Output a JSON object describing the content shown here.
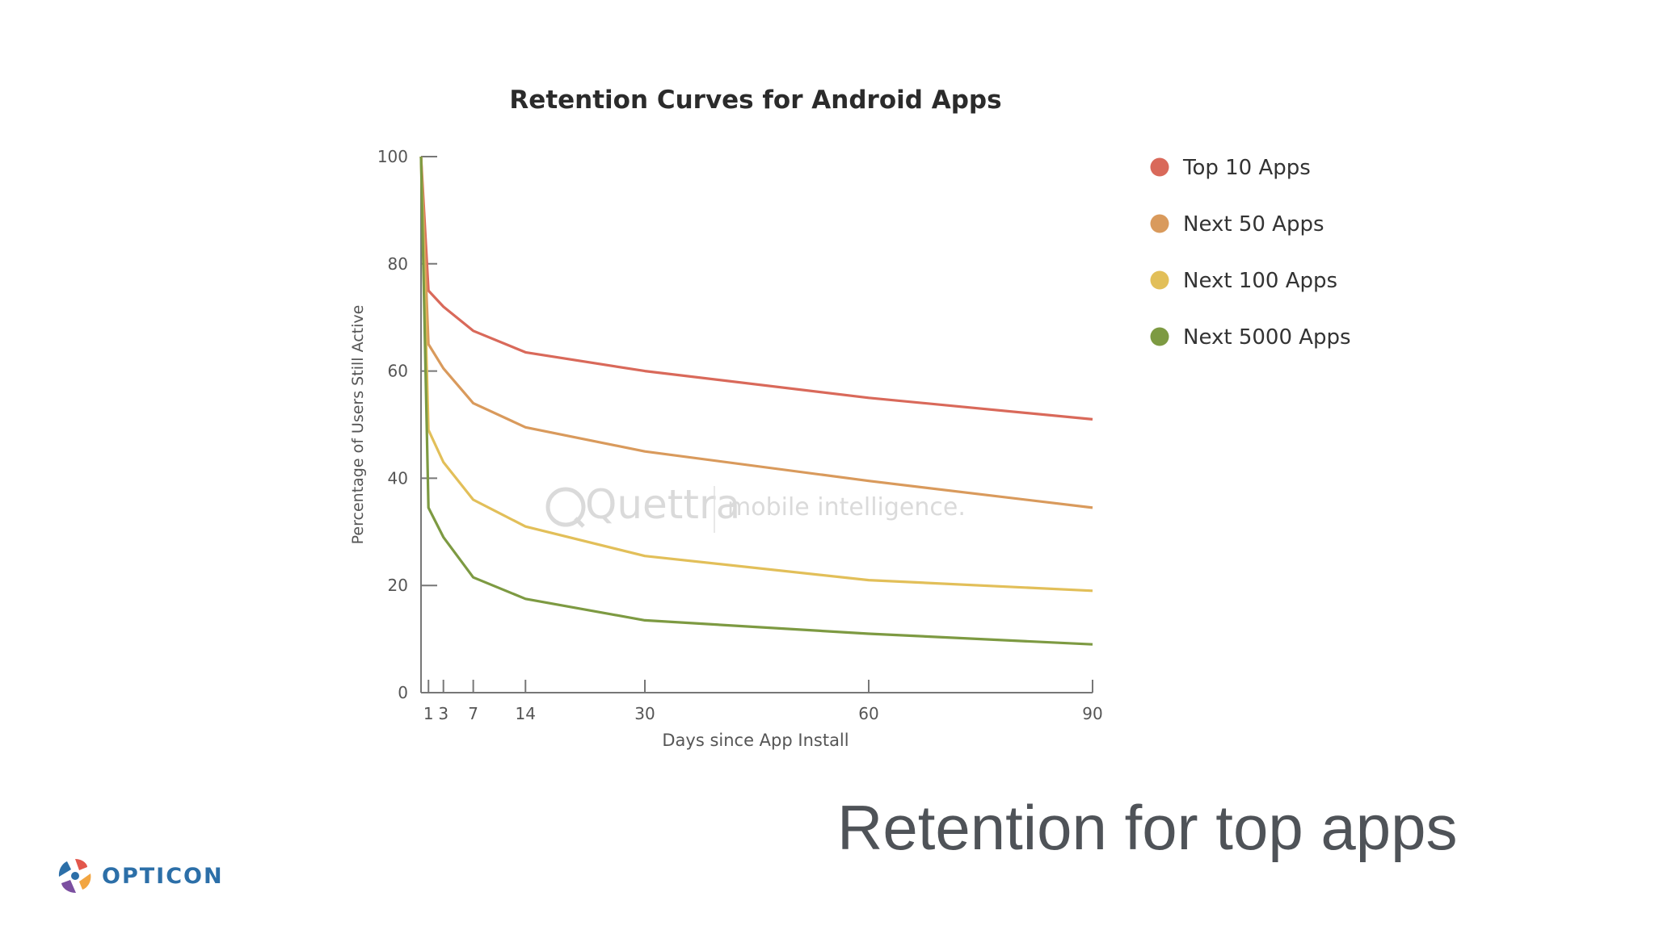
{
  "slide": {
    "title": "Retention for top apps",
    "logo_text": "OPTICON",
    "logo_icon": "opticon-swirl-icon"
  },
  "watermark": {
    "brand": "Quettra",
    "tagline": "mobile intelligence."
  },
  "chart_data": {
    "type": "line",
    "title": "Retention Curves for Android Apps",
    "xlabel": "Days since App Install",
    "ylabel": "Percentage of Users Still Active",
    "xlim": [
      0,
      90
    ],
    "ylim": [
      0,
      100
    ],
    "x_ticks": [
      1,
      3,
      7,
      14,
      30,
      60,
      90
    ],
    "y_ticks": [
      0,
      20,
      40,
      60,
      80,
      100
    ],
    "grid": false,
    "legend_position": "right",
    "series": [
      {
        "name": "Top 10 Apps",
        "color": "#d9695a",
        "points": [
          [
            0,
            100
          ],
          [
            1,
            75
          ],
          [
            3,
            72
          ],
          [
            7,
            67.5
          ],
          [
            14,
            63.5
          ],
          [
            30,
            60
          ],
          [
            60,
            55
          ],
          [
            90,
            51
          ]
        ]
      },
      {
        "name": "Next 50 Apps",
        "color": "#d99a5c",
        "points": [
          [
            0,
            100
          ],
          [
            1,
            65
          ],
          [
            3,
            60.5
          ],
          [
            7,
            54
          ],
          [
            14,
            49.5
          ],
          [
            30,
            45
          ],
          [
            60,
            39.5
          ],
          [
            90,
            34.5
          ]
        ]
      },
      {
        "name": "Next 100 Apps",
        "color": "#e2bf59",
        "points": [
          [
            0,
            100
          ],
          [
            1,
            49
          ],
          [
            3,
            43
          ],
          [
            7,
            36
          ],
          [
            14,
            31
          ],
          [
            30,
            25.5
          ],
          [
            60,
            21
          ],
          [
            90,
            19
          ]
        ]
      },
      {
        "name": "Next 5000 Apps",
        "color": "#7d9a42",
        "points": [
          [
            0,
            100
          ],
          [
            1,
            34.5
          ],
          [
            3,
            29
          ],
          [
            7,
            21.5
          ],
          [
            14,
            17.5
          ],
          [
            30,
            13.5
          ],
          [
            60,
            11
          ],
          [
            90,
            9
          ]
        ]
      }
    ]
  }
}
